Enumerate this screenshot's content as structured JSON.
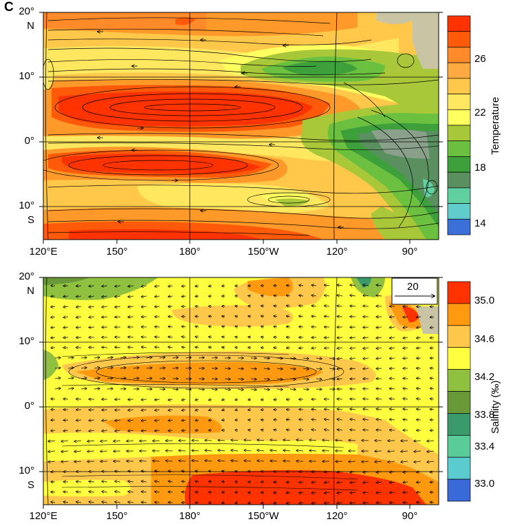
{
  "panel_label": "C",
  "x_ticks": [
    "120°E",
    "150°",
    "180°",
    "150°W",
    "120°",
    "90°"
  ],
  "top_panel": {
    "y_ticks": [
      "20°",
      "N",
      "10°",
      "0°",
      "10°",
      "S"
    ],
    "colorbar_title": "Temperature",
    "colorbar_labels": [
      "26",
      "22",
      "18",
      "14"
    ],
    "colorbar_colors": [
      "#ff3300",
      "#ff5a0a",
      "#ff8a2a",
      "#ffaa40",
      "#ffc84a",
      "#ffe860",
      "#ffff60",
      "#a8c83a",
      "#6cc040",
      "#3ea03a",
      "#5a9060",
      "#60d0a0",
      "#60cccc",
      "#3a70d8"
    ]
  },
  "bottom_panel": {
    "y_ticks": [
      "20°",
      "N",
      "10°",
      "0°",
      "10°",
      "S"
    ],
    "colorbar_title": "Salinity (‰)",
    "colorbar_labels": [
      "35.0",
      "34.6",
      "34.2",
      "33.8",
      "33.4",
      "33.0"
    ],
    "colorbar_colors": [
      "#ff3300",
      "#ff9a10",
      "#ffc84a",
      "#ffff40",
      "#90c040",
      "#6a9a38",
      "#3a9a6a",
      "#5acc9a",
      "#5accd0",
      "#3a6ad8"
    ],
    "reference_vector_label": "20"
  },
  "colors": {
    "land": "#c8c4a4",
    "hot": "#ff4a10",
    "warm": "#ff9a2a",
    "mid": "#ffc84a",
    "yellow": "#ffff50",
    "green": "#4aa83a",
    "darkgreen": "#2e8c34",
    "grey": "#8aa08a"
  }
}
